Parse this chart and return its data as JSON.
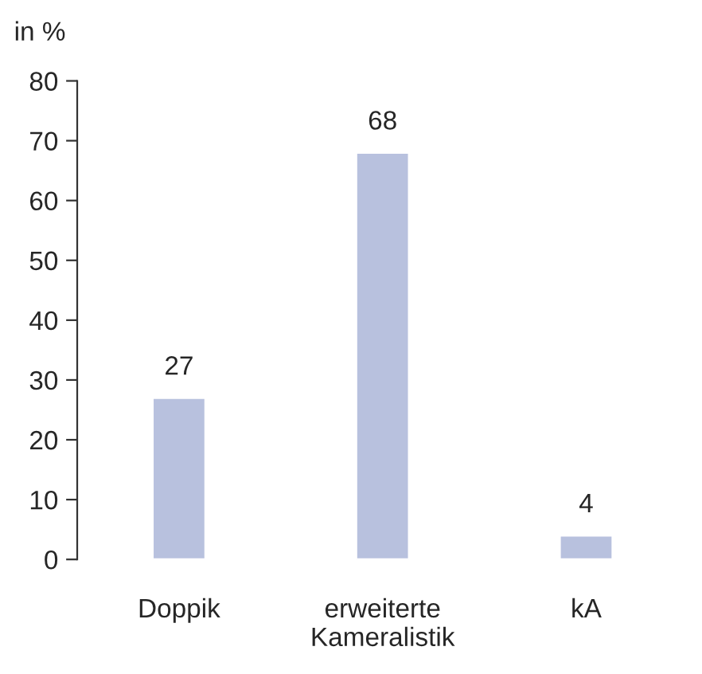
{
  "chart_data": {
    "type": "bar",
    "ylabel": "in %",
    "categories": [
      "Doppik",
      "erweiterte\nKameralistik",
      "kA"
    ],
    "values": [
      27,
      68,
      4
    ],
    "color": "#b8c1de",
    "ylim": [
      0,
      80
    ],
    "yticks": [
      0,
      10,
      20,
      30,
      40,
      50,
      60,
      70,
      80
    ],
    "data_labels": true,
    "grid": false,
    "legend": false
  }
}
